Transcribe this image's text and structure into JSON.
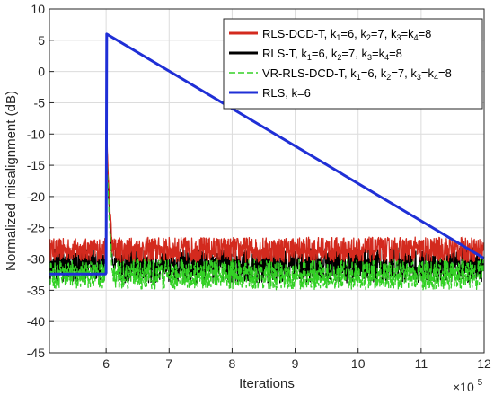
{
  "chart_data": {
    "type": "line",
    "xlabel": "Iterations",
    "ylabel": "Normalized misalignment (dB)",
    "x_multiplier": "×10",
    "x_multiplier_exp": "5",
    "xlim": [
      5.1,
      12
    ],
    "ylim": [
      -45,
      10
    ],
    "x_unit_scale": 100000,
    "xticks": [
      "6",
      "7",
      "8",
      "9",
      "10",
      "11",
      "12"
    ],
    "yticks": [
      "10",
      "5",
      "0",
      "-5",
      "-10",
      "-15",
      "-20",
      "-25",
      "-30",
      "-35",
      "-40",
      "-45"
    ],
    "grid": true,
    "legend_position": "top-right",
    "series": [
      {
        "legend": [
          {
            "t": "RLS-DCD-T, k"
          },
          {
            "t": "1",
            "sub": true
          },
          {
            "t": "=6, k"
          },
          {
            "t": "2",
            "sub": true
          },
          {
            "t": "=7, k"
          },
          {
            "t": "3",
            "sub": true
          },
          {
            "t": "=k"
          },
          {
            "t": "4",
            "sub": true
          },
          {
            "t": "=8"
          }
        ],
        "color": "#d32a1e",
        "style": "solid",
        "steady_before": -28.5,
        "noise_before": 1.8,
        "peak": 0,
        "steady_after": -28.5,
        "noise_after": 2.0
      },
      {
        "legend": [
          {
            "t": "RLS-T, k"
          },
          {
            "t": "1",
            "sub": true
          },
          {
            "t": "=6, k"
          },
          {
            "t": "2",
            "sub": true
          },
          {
            "t": "=7, k"
          },
          {
            "t": "3",
            "sub": true
          },
          {
            "t": "=k"
          },
          {
            "t": "4",
            "sub": true
          },
          {
            "t": "=8"
          }
        ],
        "color": "#000000",
        "style": "solid",
        "steady_before": -31,
        "noise_before": 2.6,
        "peak": 0.2,
        "steady_after": -31,
        "noise_after": 2.8
      },
      {
        "legend": [
          {
            "t": "VR-RLS-DCD-T, k"
          },
          {
            "t": "1",
            "sub": true
          },
          {
            "t": "=6, k"
          },
          {
            "t": "2",
            "sub": true
          },
          {
            "t": "=7, k"
          },
          {
            "t": "3",
            "sub": true
          },
          {
            "t": "=k"
          },
          {
            "t": "4",
            "sub": true
          },
          {
            "t": "=8"
          }
        ],
        "color": "#33d125",
        "style": "dashed",
        "steady_before": -32.5,
        "noise_before": 2.2,
        "peak": -1,
        "steady_after": -32.5,
        "noise_after": 2.4
      },
      {
        "legend": [
          {
            "t": "RLS, k=6"
          }
        ],
        "color": "#1f2fd6",
        "style": "solid",
        "points": [
          [
            5.1,
            -32.4
          ],
          [
            5.99,
            -32.4
          ],
          [
            6.0,
            -32.2
          ],
          [
            6.01,
            6.0
          ],
          [
            12.0,
            -29.9
          ]
        ]
      }
    ],
    "change_point": 6.0,
    "transient_end": 6.1
  }
}
